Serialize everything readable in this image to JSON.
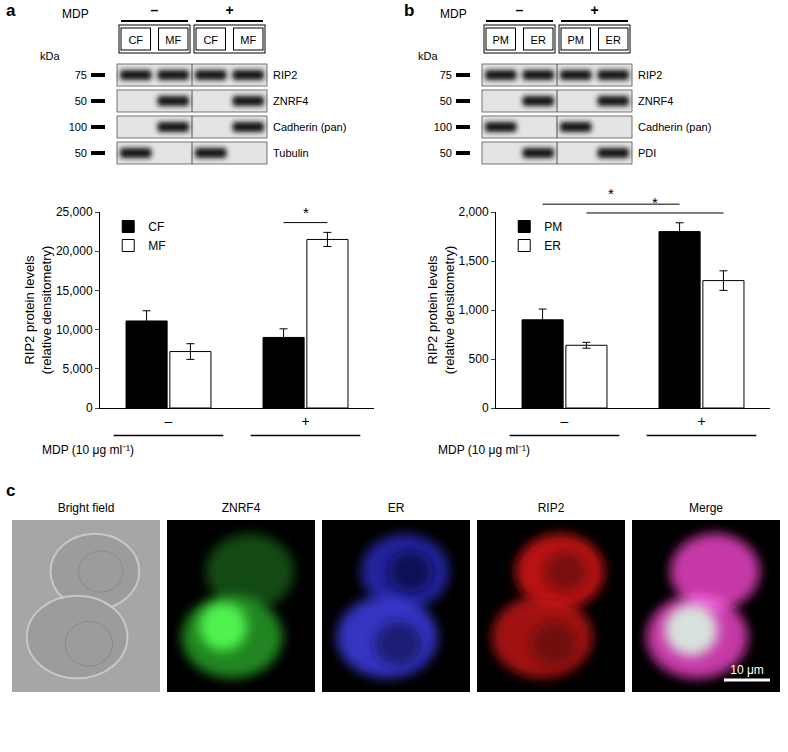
{
  "panel_labels": [
    "a",
    "b",
    "c"
  ],
  "blots": [
    {
      "panel": "a",
      "treatment_label": "MDP",
      "treatments": [
        "–",
        "+"
      ],
      "lanes": [
        "CF",
        "MF",
        "CF",
        "MF"
      ],
      "kda_label": "kDa",
      "rows": [
        {
          "protein": "RIP2",
          "kda": 75,
          "bands": [
            true,
            true,
            true,
            true
          ]
        },
        {
          "protein": "ZNRF4",
          "kda": 50,
          "bands": [
            false,
            true,
            false,
            true
          ]
        },
        {
          "protein": "Cadherin (pan)",
          "kda": 100,
          "bands": [
            false,
            true,
            false,
            true
          ]
        },
        {
          "protein": "Tubulin",
          "kda": 50,
          "bands": [
            true,
            false,
            true,
            false
          ]
        }
      ]
    },
    {
      "panel": "b",
      "treatment_label": "MDP",
      "treatments": [
        "–",
        "+"
      ],
      "lanes": [
        "PM",
        "ER",
        "PM",
        "ER"
      ],
      "kda_label": "kDa",
      "rows": [
        {
          "protein": "RIP2",
          "kda": 75,
          "bands": [
            true,
            true,
            true,
            true
          ]
        },
        {
          "protein": "ZNRF4",
          "kda": 50,
          "bands": [
            false,
            true,
            false,
            true
          ]
        },
        {
          "protein": "Cadherin (pan)",
          "kda": 100,
          "bands": [
            true,
            false,
            true,
            false
          ]
        },
        {
          "protein": "PDI",
          "kda": 50,
          "bands": [
            false,
            true,
            false,
            true
          ]
        }
      ]
    }
  ],
  "chart_data": [
    {
      "panel": "a",
      "type": "bar",
      "categories": [
        "–",
        "+"
      ],
      "series": [
        {
          "name": "CF",
          "color": "#000000",
          "values": [
            11100,
            9000
          ],
          "errors": [
            1300,
            1100
          ]
        },
        {
          "name": "MF",
          "color": "#ffffff",
          "values": [
            7200,
            21500
          ],
          "errors": [
            1000,
            900
          ]
        }
      ],
      "y_label": [
        "RIP2 protein levels",
        "(relative densitometry)"
      ],
      "x_label": "MDP (10 μg ml⁻¹)",
      "ylim": [
        0,
        25000
      ],
      "yticks": [
        0,
        {
          "value": 5000,
          "label": "5,000"
        },
        {
          "value": 10000,
          "label": "10,000"
        },
        {
          "value": 15000,
          "label": "15,000"
        },
        {
          "value": 20000,
          "label": "20,000"
        },
        {
          "value": 25000,
          "label": "25,000"
        }
      ],
      "grid": false,
      "legend": "upper left",
      "significance": [
        {
          "from": {
            "category": "+",
            "series": "CF"
          },
          "to": {
            "category": "+",
            "series": "MF"
          },
          "label": "*"
        }
      ]
    },
    {
      "panel": "b",
      "type": "bar",
      "categories": [
        "–",
        "+"
      ],
      "series": [
        {
          "name": "PM",
          "color": "#000000",
          "values": [
            900,
            1800
          ],
          "errors": [
            110,
            90
          ]
        },
        {
          "name": "ER",
          "color": "#ffffff",
          "values": [
            640,
            1300
          ],
          "errors": [
            30,
            100
          ]
        }
      ],
      "y_label": [
        "RIP2 protein levels",
        "(relative densitometry)"
      ],
      "x_label": "MDP (10 μg ml⁻¹)",
      "ylim": [
        0,
        2000
      ],
      "yticks": [
        0,
        500,
        {
          "value": 1000,
          "label": "1,000"
        },
        {
          "value": 1500,
          "label": "1,500"
        },
        {
          "value": 2000,
          "label": "2,000"
        }
      ],
      "grid": false,
      "legend": "upper left",
      "significance": [
        {
          "from": {
            "category": "–",
            "series": "PM"
          },
          "to": {
            "category": "+",
            "series": "PM"
          },
          "label": "*"
        },
        {
          "from": {
            "category": "–",
            "series": "ER"
          },
          "to": {
            "category": "+",
            "series": "ER"
          },
          "label": "*"
        }
      ]
    }
  ],
  "micrographs": {
    "panel": "c",
    "titles": [
      "Bright field",
      "ZNRF4",
      "ER",
      "RIP2",
      "Merge"
    ],
    "scale_bar": "10 μm"
  }
}
